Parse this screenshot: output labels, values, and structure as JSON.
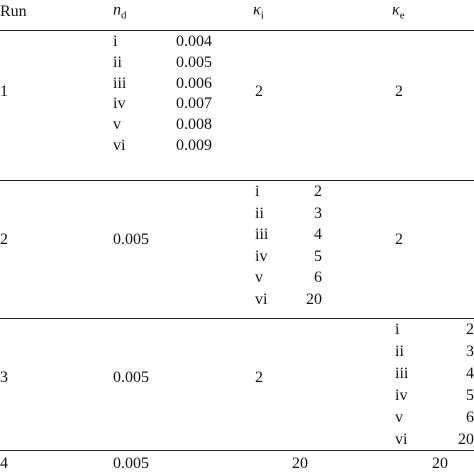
{
  "table": {
    "header": [
      {
        "text": "Run"
      },
      {
        "text": "n",
        "sub": "d"
      },
      {
        "text": "κ",
        "sub": "i"
      },
      {
        "text": "κ",
        "sub": "e"
      }
    ],
    "rows": [
      {
        "run": "1",
        "nd": {
          "labels": [
            "i",
            "ii",
            "iii",
            "iv",
            "v",
            "vi"
          ],
          "values": [
            "0.004",
            "0.005",
            "0.006",
            "0.007",
            "0.008",
            "0.009"
          ]
        },
        "ki": "2",
        "ke": "2"
      },
      {
        "run": "2",
        "nd": "0.005",
        "ki": {
          "labels": [
            "i",
            "ii",
            "iii",
            "iv",
            "v",
            "vi"
          ],
          "values": [
            "2",
            "3",
            "4",
            "5",
            "6",
            "20"
          ]
        },
        "ke": "2"
      },
      {
        "run": "3",
        "nd": "0.005",
        "ki": "2",
        "ke": {
          "labels": [
            "i",
            "ii",
            "iii",
            "iv",
            "v",
            "vi"
          ],
          "values": [
            "2",
            "3",
            "4",
            "5",
            "6",
            "20"
          ]
        }
      },
      {
        "run": "4",
        "nd": "0.005",
        "ki": "20",
        "ke": "20"
      }
    ]
  }
}
